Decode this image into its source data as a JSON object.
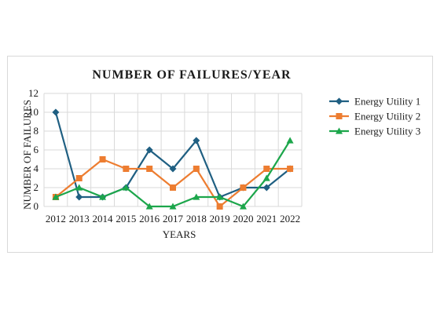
{
  "chart_data": {
    "type": "line",
    "title": "NUMBER OF FAILURES/YEAR",
    "xlabel": "YEARS",
    "ylabel": "NUMBER OF FAILURES",
    "x": [
      "2012",
      "2013",
      "2014",
      "2015",
      "2016",
      "2017",
      "2018",
      "2019",
      "2020",
      "2021",
      "2022"
    ],
    "ylim": [
      0,
      12
    ],
    "yticks": [
      0,
      2,
      4,
      6,
      8,
      10,
      12
    ],
    "grid": true,
    "legend_position": "right",
    "series": [
      {
        "name": "Energy Utility 1",
        "color": "#1f5f82",
        "marker": "diamond",
        "values": [
          10,
          1,
          1,
          2,
          6,
          4,
          7,
          1,
          2,
          2,
          4
        ]
      },
      {
        "name": "Energy Utility 2",
        "color": "#ed7d31",
        "marker": "square",
        "values": [
          1,
          3,
          5,
          4,
          4,
          2,
          4,
          0,
          2,
          4,
          4
        ]
      },
      {
        "name": "Energy Utility 3",
        "color": "#1ca64b",
        "marker": "triangle",
        "values": [
          1,
          2,
          1,
          2,
          0,
          0,
          1,
          1,
          0,
          3,
          7
        ]
      }
    ]
  }
}
